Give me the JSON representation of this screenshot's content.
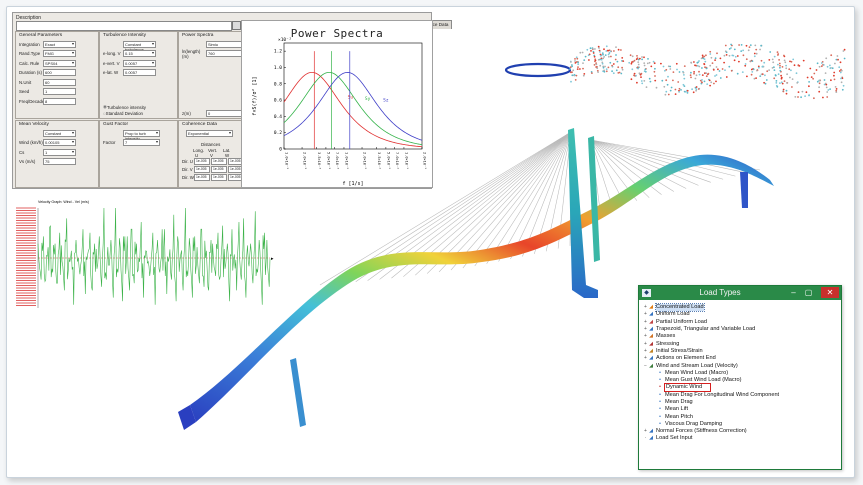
{
  "param_window": {
    "description_label": "Description",
    "tabs": [
      "Mean Velocity",
      "Turbulence Intensity",
      "Gust Factor",
      "Power Spectra",
      "Coherence Data"
    ],
    "active_tab": 3,
    "general": {
      "title": "General Parameters",
      "rows": [
        {
          "label": "Integration",
          "value": "Exact"
        },
        {
          "label": "Rand.Type",
          "value": "FMG"
        },
        {
          "label": "Calc. Rule",
          "value": "SPS04"
        },
        {
          "label": "Duration (s)",
          "value": "600"
        },
        {
          "label": "N.Unit",
          "value": "60"
        },
        {
          "label": "Seed",
          "value": "1"
        },
        {
          "label": "Freq/Decade",
          "value": "8"
        }
      ]
    },
    "turbulence": {
      "title": "Turbulence Intensity",
      "rows": [
        {
          "label": "",
          "value": "Constant turbulence"
        },
        {
          "label": "e-long. V",
          "value": "0.15"
        },
        {
          "label": "e-vert. V",
          "value": "0.0057"
        },
        {
          "label": "e-lat. W",
          "value": "0.0057"
        }
      ],
      "radio1": "Turbulence intensity",
      "radio2": "Standard Deviation"
    },
    "spectra_group": {
      "title": "Power Spectra",
      "rows": [
        {
          "label": "",
          "value": "Simiu"
        },
        {
          "label": "ln(length)(m)",
          "value": "760"
        }
      ],
      "extra_label": "z(m)",
      "extra_value": "0"
    },
    "mean_velocity": {
      "title": "Mean Velocity",
      "rows": [
        {
          "label": "",
          "value": "Constant"
        },
        {
          "label": "Wind (km/h)",
          "value": "0.00105"
        },
        {
          "label": "Cs",
          "value": "1"
        },
        {
          "label": "Vs (m/s)",
          "value": "75"
        }
      ]
    },
    "gust": {
      "title": "Gust Factor",
      "rows": [
        {
          "label": "",
          "value": "Prop to turb intensity"
        },
        {
          "label": "Factor",
          "value": "7"
        }
      ]
    },
    "coherence": {
      "title": "Coherence Data",
      "rows": [
        {
          "label": "",
          "value": "Exponential"
        }
      ],
      "distances_title": "Distances",
      "head": [
        "Long.",
        "Vert.",
        "Lat."
      ],
      "head2": [
        "U",
        "V",
        "W"
      ],
      "matrix": [
        {
          "label": "Dir. U",
          "values": [
            "1e-005",
            "1e-005",
            "1e-005"
          ]
        },
        {
          "label": "Dir. V",
          "values": [
            "1e-005",
            "1e-005",
            "1e-005"
          ]
        },
        {
          "label": "Dir. W",
          "values": [
            "1e-005",
            "1e-005",
            "1e-005"
          ]
        }
      ]
    }
  },
  "chart_data": {
    "type": "line",
    "title": "Power Spectra",
    "xlabel": "f [1/s]",
    "ylabel": "f×S(f)/σ² [1]",
    "y_exponent_label": "×10⁻²",
    "y_ticks": [
      "0",
      "0.2",
      "0.4",
      "0.6",
      "0.8",
      "1.0",
      "1.2"
    ],
    "ylim": [
      0,
      1.3
    ],
    "x_log": true,
    "x_tick_labels": [
      "1.0×10⁻³",
      "2.0×10⁻³",
      "3.5×10⁻³",
      "5.0×10⁻³",
      "7.0×10⁻³",
      "1.0×10⁻²",
      "2.0×10⁻²",
      "3.5×10⁻²",
      "5.0×10⁻²",
      "7.0×10⁻²",
      "1.0×10⁻¹",
      "2.0×10⁻¹"
    ],
    "xlim": [
      0.001,
      0.2
    ],
    "series": [
      {
        "name": "Su",
        "color": "#e03030",
        "peak_f": 0.0032,
        "peak": 1.2
      },
      {
        "name": "Sy",
        "color": "#34b34a",
        "peak_f": 0.0062,
        "peak": 1.2
      },
      {
        "name": "Sz",
        "color": "#4040c8",
        "peak_f": 0.0125,
        "peak": 1.2
      }
    ],
    "curve_labels": [
      "Su",
      "Sy",
      "Sz"
    ]
  },
  "history": {
    "title": "Velocity Graph: Wind - Vel (m/s)",
    "values": [
      0.2,
      -0.4,
      0.8,
      -0.9,
      0.5,
      1.1,
      -0.2,
      0.6,
      -1.0,
      0.9,
      0.1,
      -0.7,
      1.3,
      -0.3,
      0.4,
      -1.1,
      0.7,
      0.2,
      -0.5,
      1.0,
      -0.8,
      0.3,
      0.9,
      -1.2,
      0.6,
      -0.1,
      0.8,
      -0.6,
      1.2,
      -0.4,
      0.0,
      0.7,
      -0.9,
      1.1,
      -0.2,
      0.5,
      -1.0,
      0.8,
      0.3,
      -0.7,
      1.0,
      -0.5,
      0.6,
      -0.3,
      1.2,
      -0.9,
      0.4,
      0.1,
      -0.6,
      0.9,
      -1.1,
      0.7,
      -0.2,
      0.5,
      1.0,
      -0.8,
      0.2,
      -0.4,
      0.9,
      -1.0,
      0.6,
      0.3,
      -0.7,
      1.1,
      -0.3,
      0.5,
      -0.9,
      0.8,
      0.0,
      -0.5,
      1.0,
      -0.6,
      0.4,
      -1.2,
      0.7,
      0.2,
      -0.3,
      0.9,
      -0.8,
      1.1,
      -0.1,
      0.6,
      -1.0,
      0.5,
      0.3,
      -0.7,
      1.2,
      -0.4,
      0.8,
      -0.9,
      0.1,
      0.6,
      -0.5,
      1.0,
      -0.2,
      0.4,
      -1.1,
      0.9,
      0.2,
      -0.6
    ],
    "color": "#3db34a"
  },
  "load_types": {
    "title": "Load Types",
    "items": [
      {
        "label": "Concentrated Load",
        "level": 1,
        "expander": "+",
        "selected": true
      },
      {
        "label": "Uniform Load",
        "level": 1,
        "expander": "+"
      },
      {
        "label": "Partial Uniform Load",
        "level": 1,
        "expander": "+"
      },
      {
        "label": "Trapezoid, Triangular and Variable Load",
        "level": 1,
        "expander": "+"
      },
      {
        "label": "Masses",
        "level": 1,
        "expander": "+"
      },
      {
        "label": "Stressing",
        "level": 1,
        "expander": "+"
      },
      {
        "label": "Initial Stress/Strain",
        "level": 1,
        "expander": "+"
      },
      {
        "label": "Actions on Element End",
        "level": 1,
        "expander": "+"
      },
      {
        "label": "Wind and Stream Load (Velocity)",
        "level": 1,
        "expander": "−"
      },
      {
        "label": "Mean Wind Load (Macro)",
        "level": 2
      },
      {
        "label": "Mean Gust Wind Load (Macro)",
        "level": 2
      },
      {
        "label": "Dynamic Wind",
        "level": 2,
        "highlight": true
      },
      {
        "label": "Mean Drag For Longitudinal Wind Component",
        "level": 2
      },
      {
        "label": "Mean Drag",
        "level": 2
      },
      {
        "label": "Mean Lift",
        "level": 2
      },
      {
        "label": "Mean Pitch",
        "level": 2
      },
      {
        "label": "Viscous Drag Damping",
        "level": 2
      },
      {
        "label": "Normal Forces (Stiffness Correction)",
        "level": 1,
        "expander": "+"
      },
      {
        "label": "Load Set Input",
        "level": 1
      }
    ],
    "accent": "#2a8a48"
  }
}
